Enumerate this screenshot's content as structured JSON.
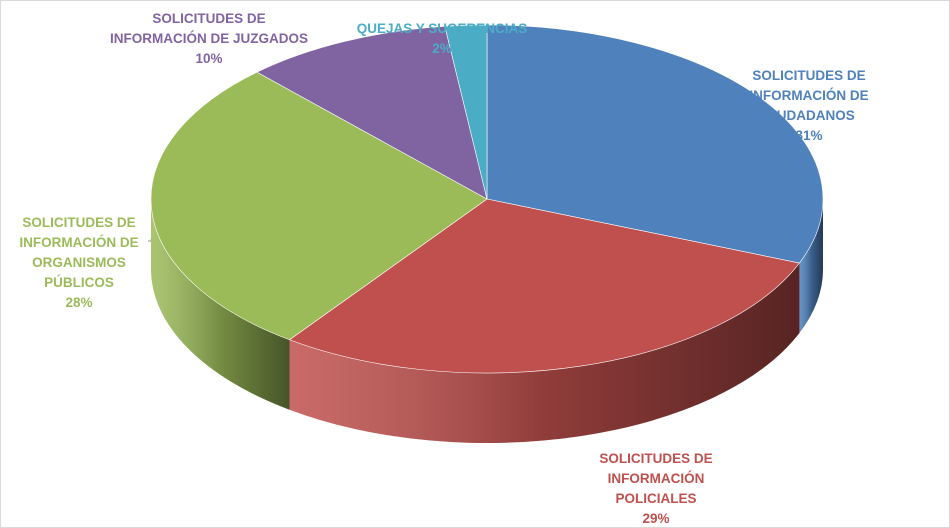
{
  "chart_data": {
    "type": "pie",
    "categories": [
      "SOLICITUDES DE INFORMACIÓN DE CIUDADANOS",
      "SOLICITUDES DE INFORMACIÓN POLICIALES",
      "SOLICITUDES DE INFORMACIÓN DE ORGANISMOS PÚBLICOS",
      "SOLICITUDES DE INFORMACIÓN DE JUZGADOS",
      "QUEJAS Y SUGERENCIAS"
    ],
    "values": [
      31,
      29,
      28,
      10,
      2
    ],
    "value_labels": [
      "31%",
      "29%",
      "28%",
      "10%",
      "2%"
    ],
    "colors": [
      "#4f81bd",
      "#c0504d",
      "#9bbb59",
      "#8064a2",
      "#4bacc6"
    ]
  }
}
